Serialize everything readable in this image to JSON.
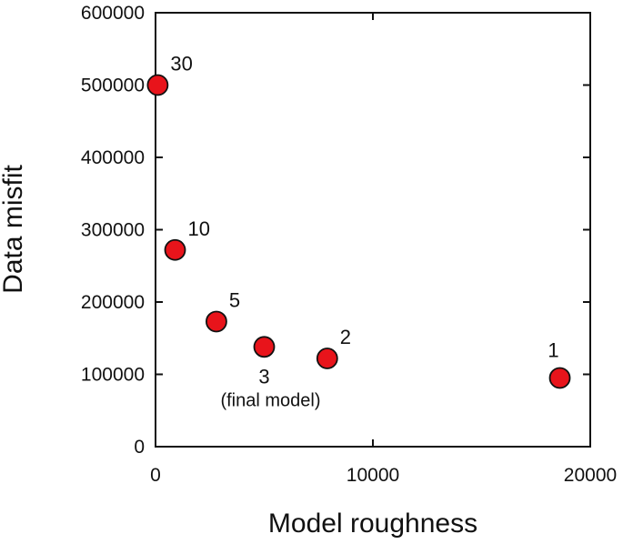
{
  "chart_data": {
    "type": "scatter",
    "title": "",
    "xlabel": "Model roughness",
    "ylabel": "Data misfit",
    "xlim": [
      0,
      20000
    ],
    "ylim": [
      0,
      600000
    ],
    "x_ticks": [
      0,
      10000,
      20000
    ],
    "x_tick_labels": [
      "0",
      "10000",
      "20000"
    ],
    "y_ticks": [
      0,
      100000,
      200000,
      300000,
      400000,
      500000,
      600000
    ],
    "y_tick_labels": [
      "0",
      "100000",
      "200000",
      "300000",
      "400000",
      "500000",
      "600000"
    ],
    "grid": false,
    "marker_color": "#e8141b",
    "points": [
      {
        "x": 100,
        "y": 500000,
        "label": "30",
        "note": ""
      },
      {
        "x": 900,
        "y": 272000,
        "label": "10",
        "note": ""
      },
      {
        "x": 2800,
        "y": 173000,
        "label": "5",
        "note": ""
      },
      {
        "x": 5000,
        "y": 138000,
        "label": "3",
        "note": "(final model)"
      },
      {
        "x": 7900,
        "y": 122000,
        "label": "2",
        "note": ""
      },
      {
        "x": 18600,
        "y": 95000,
        "label": "1",
        "note": ""
      }
    ]
  }
}
